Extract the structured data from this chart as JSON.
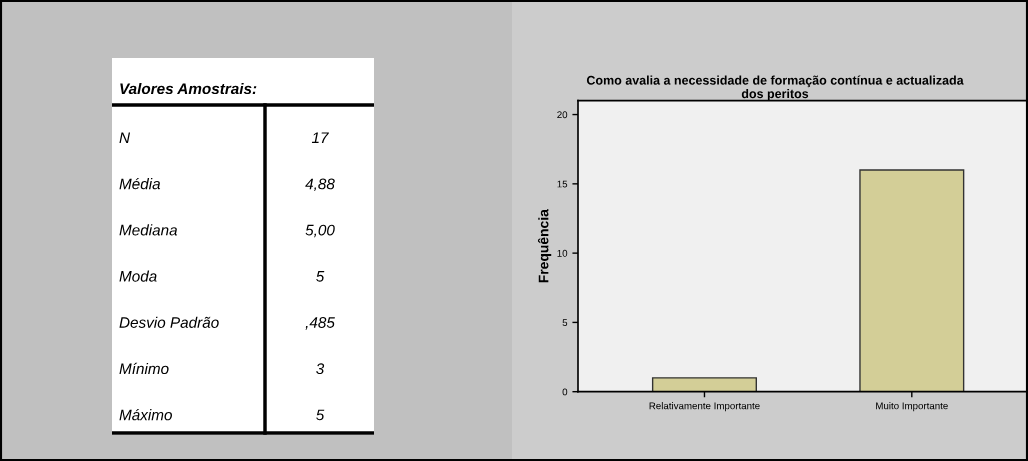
{
  "chart_data": [
    {
      "type": "other",
      "title": "Valores Amostrais:",
      "annotations": [
        "N",
        "17",
        "Média",
        "4,88",
        "Mediana",
        "5,00",
        "Moda",
        "5",
        "Desvio Padrão",
        ",485",
        "Mínimo",
        "3",
        "Máximo",
        "5"
      ]
    },
    {
      "type": "bar",
      "title": "Como avalia a necessidade de formação contínua e actualizada\ndos peritos",
      "ylabel": "Frequência",
      "categories": [
        "Relativamente Importante",
        "Muito Importante"
      ],
      "values": [
        1,
        16
      ],
      "color": "#d3ce97",
      "ylim": [
        0,
        21
      ],
      "yticks": [
        0,
        5,
        10,
        15,
        20
      ],
      "grid": false,
      "legend": false
    }
  ]
}
